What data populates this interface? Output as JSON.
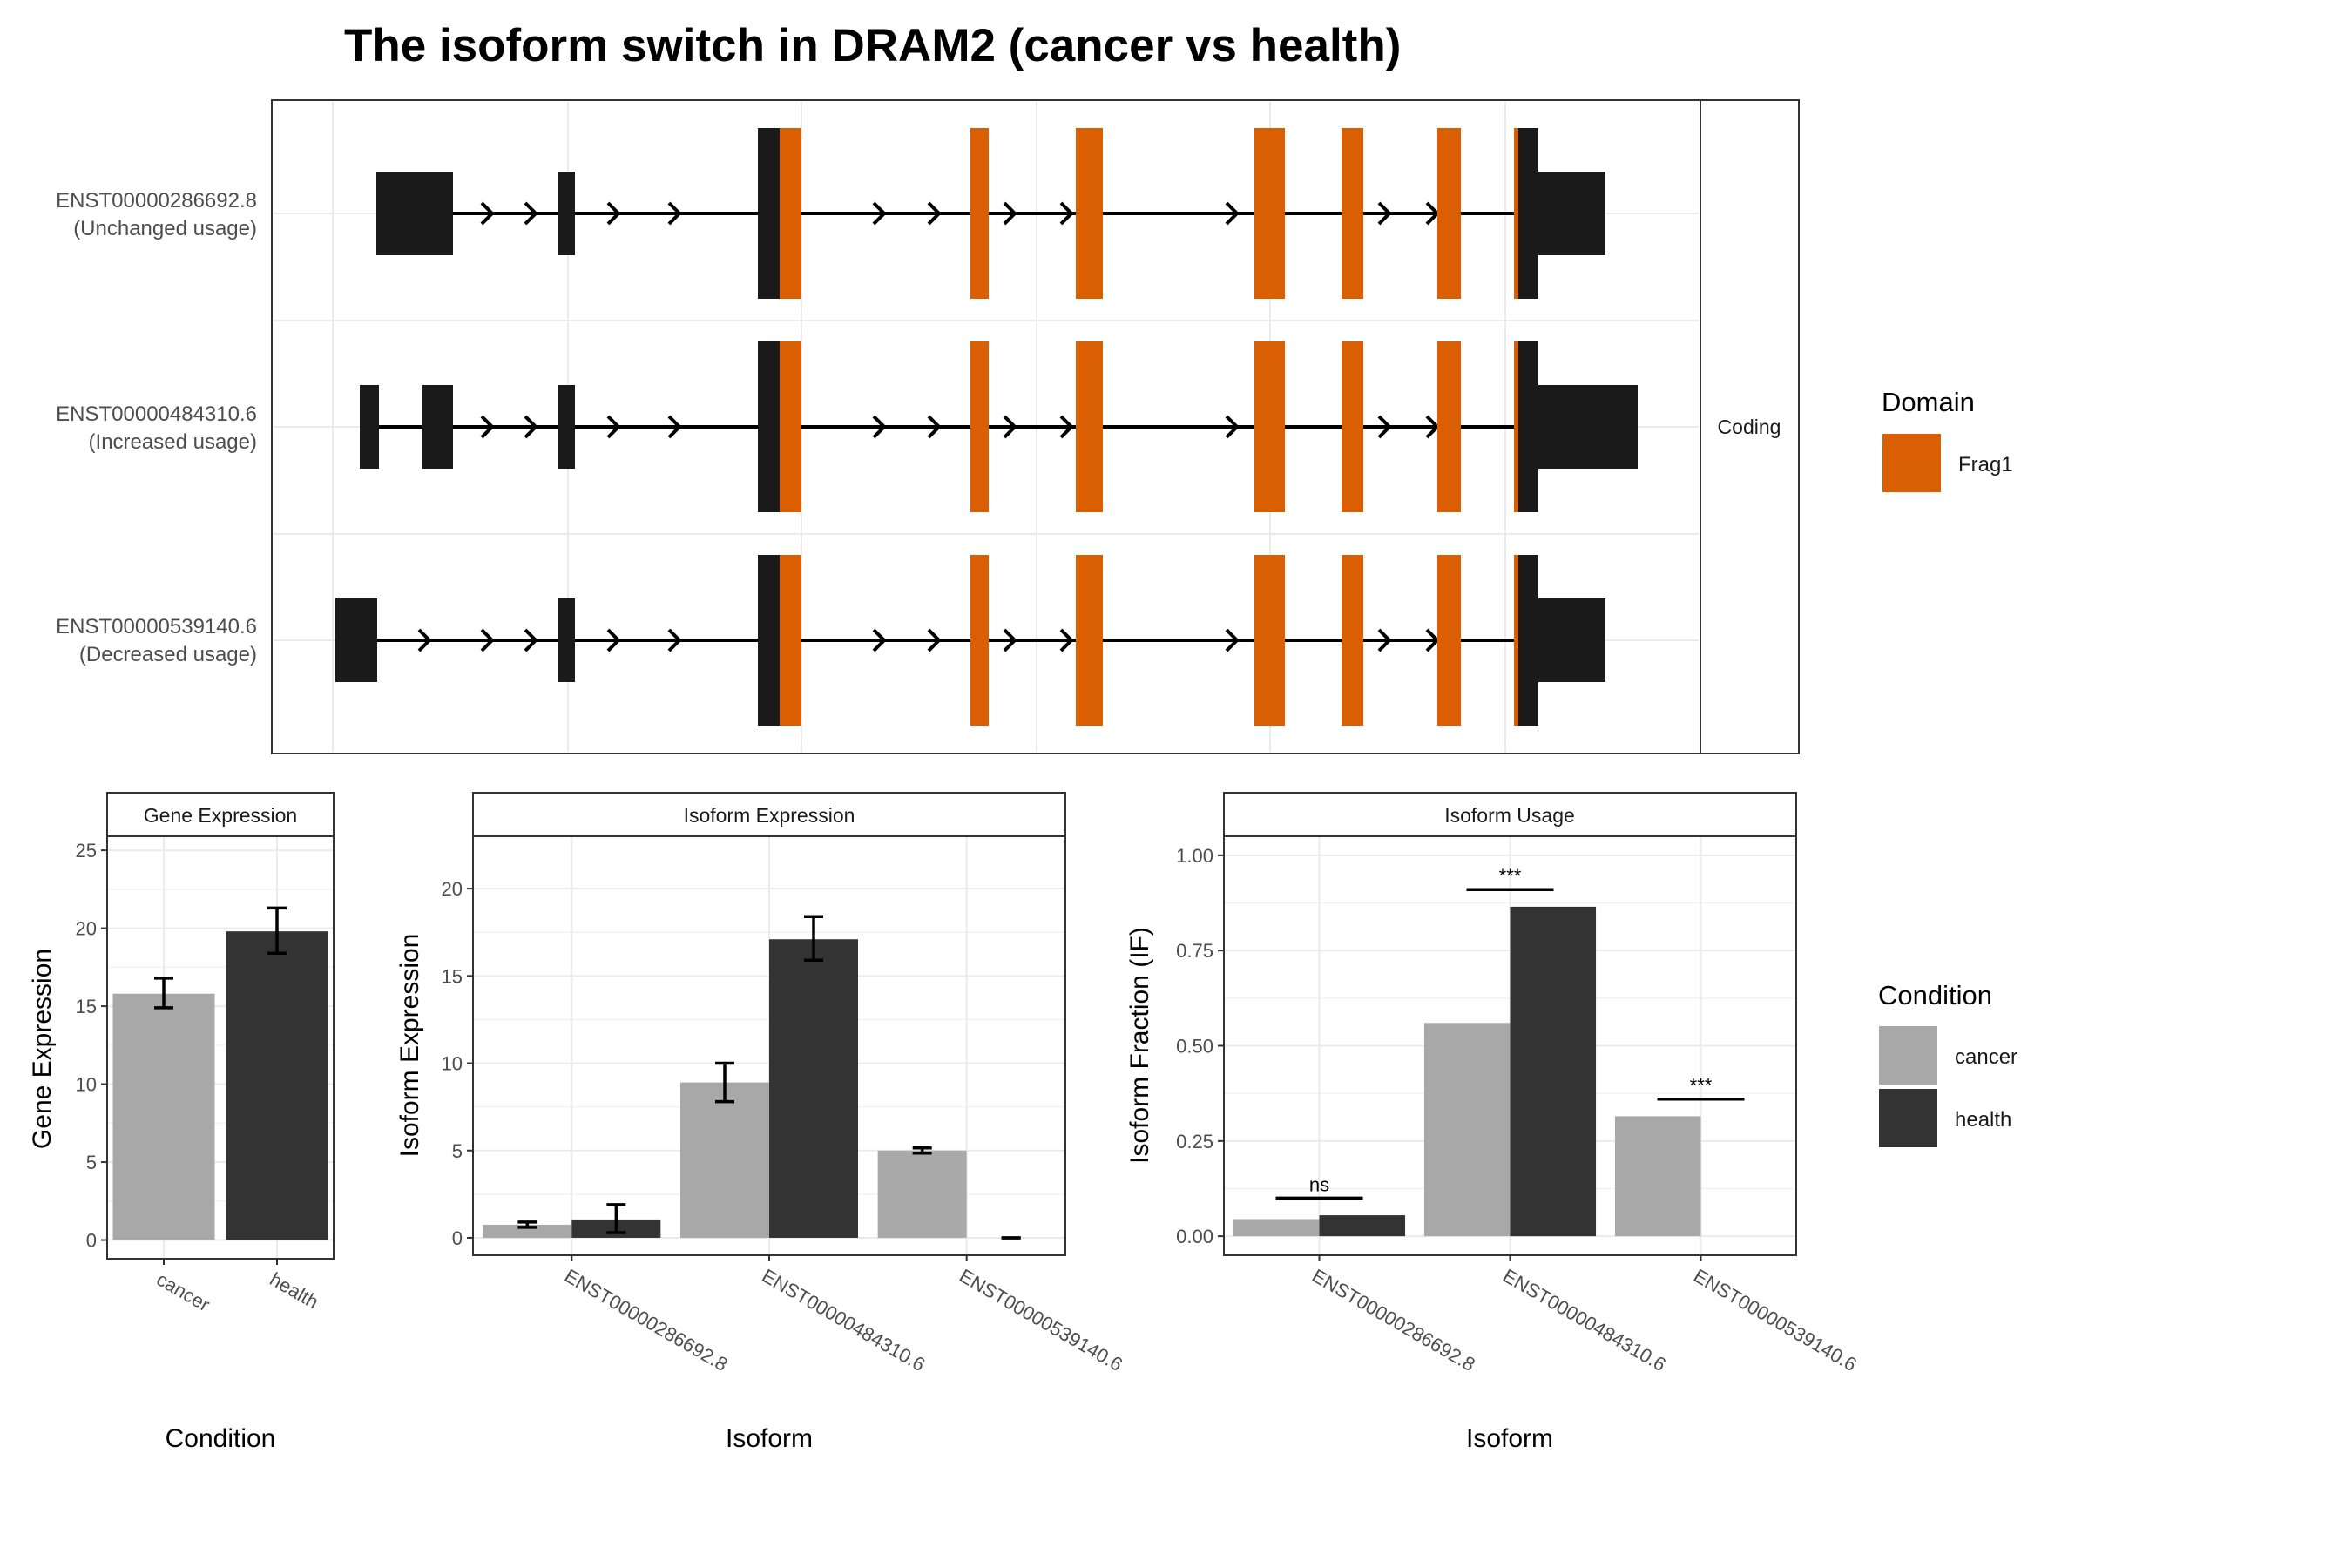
{
  "title": "The isoform switch in DRAM2 (cancer vs health)",
  "colors": {
    "domain": "#D95F02",
    "cancer": "#A8A8A8",
    "health": "#333333",
    "exon": "#1A1A1A",
    "grid": "#EBEBEB",
    "frame": "#333333"
  },
  "structure": {
    "isoforms": [
      {
        "id": "ENST00000286692.8",
        "note": "(Unchanged usage)"
      },
      {
        "id": "ENST00000484310.6",
        "note": "(Increased usage)"
      },
      {
        "id": "ENST00000539140.6",
        "note": "(Decreased usage)"
      }
    ],
    "facet_label": "Coding",
    "legend_title": "Domain",
    "legend_items": [
      {
        "label": "Frag1",
        "color": "#D95F02"
      }
    ]
  },
  "panels": {
    "gene": {
      "strip": "Gene Expression",
      "xlabel": "Condition",
      "ylabel": "Gene Expression"
    },
    "isoform_expr": {
      "strip": "Isoform Expression",
      "xlabel": "Isoform",
      "ylabel": "Isoform Expression"
    },
    "usage": {
      "strip": "Isoform Usage",
      "xlabel": "Isoform",
      "ylabel": "Isoform Fraction (IF)"
    }
  },
  "condition_legend": {
    "title": "Condition",
    "items": [
      {
        "label": "cancer",
        "color": "#A8A8A8"
      },
      {
        "label": "health",
        "color": "#333333"
      }
    ]
  },
  "chart_data": [
    {
      "type": "bar",
      "title": "Gene Expression",
      "xlabel": "Condition",
      "ylabel": "Gene Expression",
      "categories": [
        "cancer",
        "health"
      ],
      "values": [
        15.8,
        19.8
      ],
      "error_low": [
        14.9,
        18.4
      ],
      "error_high": [
        16.8,
        21.3
      ],
      "ylim": [
        -1.2,
        25.9
      ],
      "yticks": [
        0,
        5,
        10,
        15,
        20,
        25
      ],
      "grid": true
    },
    {
      "type": "bar",
      "title": "Isoform Expression",
      "xlabel": "Isoform",
      "ylabel": "Isoform Expression",
      "categories": [
        "ENST00000286692.8",
        "ENST00000484310.6",
        "ENST00000539140.6"
      ],
      "series": [
        {
          "name": "cancer",
          "values": [
            0.75,
            8.9,
            5.0
          ],
          "error_low": [
            0.6,
            7.8,
            4.85
          ],
          "error_high": [
            0.9,
            10.0,
            5.15
          ]
        },
        {
          "name": "health",
          "values": [
            1.05,
            17.1,
            0.0
          ],
          "error_low": [
            0.3,
            15.9,
            0.0
          ],
          "error_high": [
            1.9,
            18.4,
            0.0
          ]
        }
      ],
      "ylim": [
        -1.0,
        23.0
      ],
      "yticks": [
        0,
        5,
        10,
        15,
        20
      ],
      "grid": true
    },
    {
      "type": "bar",
      "title": "Isoform Usage",
      "xlabel": "Isoform",
      "ylabel": "Isoform Fraction (IF)",
      "categories": [
        "ENST00000286692.8",
        "ENST00000484310.6",
        "ENST00000539140.6"
      ],
      "series": [
        {
          "name": "cancer",
          "values": [
            0.045,
            0.56,
            0.315
          ]
        },
        {
          "name": "health",
          "values": [
            0.055,
            0.865,
            0.0
          ]
        }
      ],
      "significance": [
        {
          "category": "ENST00000286692.8",
          "label": "ns",
          "y": 0.1
        },
        {
          "category": "ENST00000484310.6",
          "label": "***",
          "y": 0.91
        },
        {
          "category": "ENST00000539140.6",
          "label": "***",
          "y": 0.36
        }
      ],
      "ylim": [
        -0.05,
        1.05
      ],
      "yticks": [
        0.0,
        0.25,
        0.5,
        0.75,
        1.0
      ],
      "ytick_labels": [
        "0.00",
        "0.25",
        "0.50",
        "0.75",
        "1.00"
      ],
      "grid": true
    }
  ]
}
